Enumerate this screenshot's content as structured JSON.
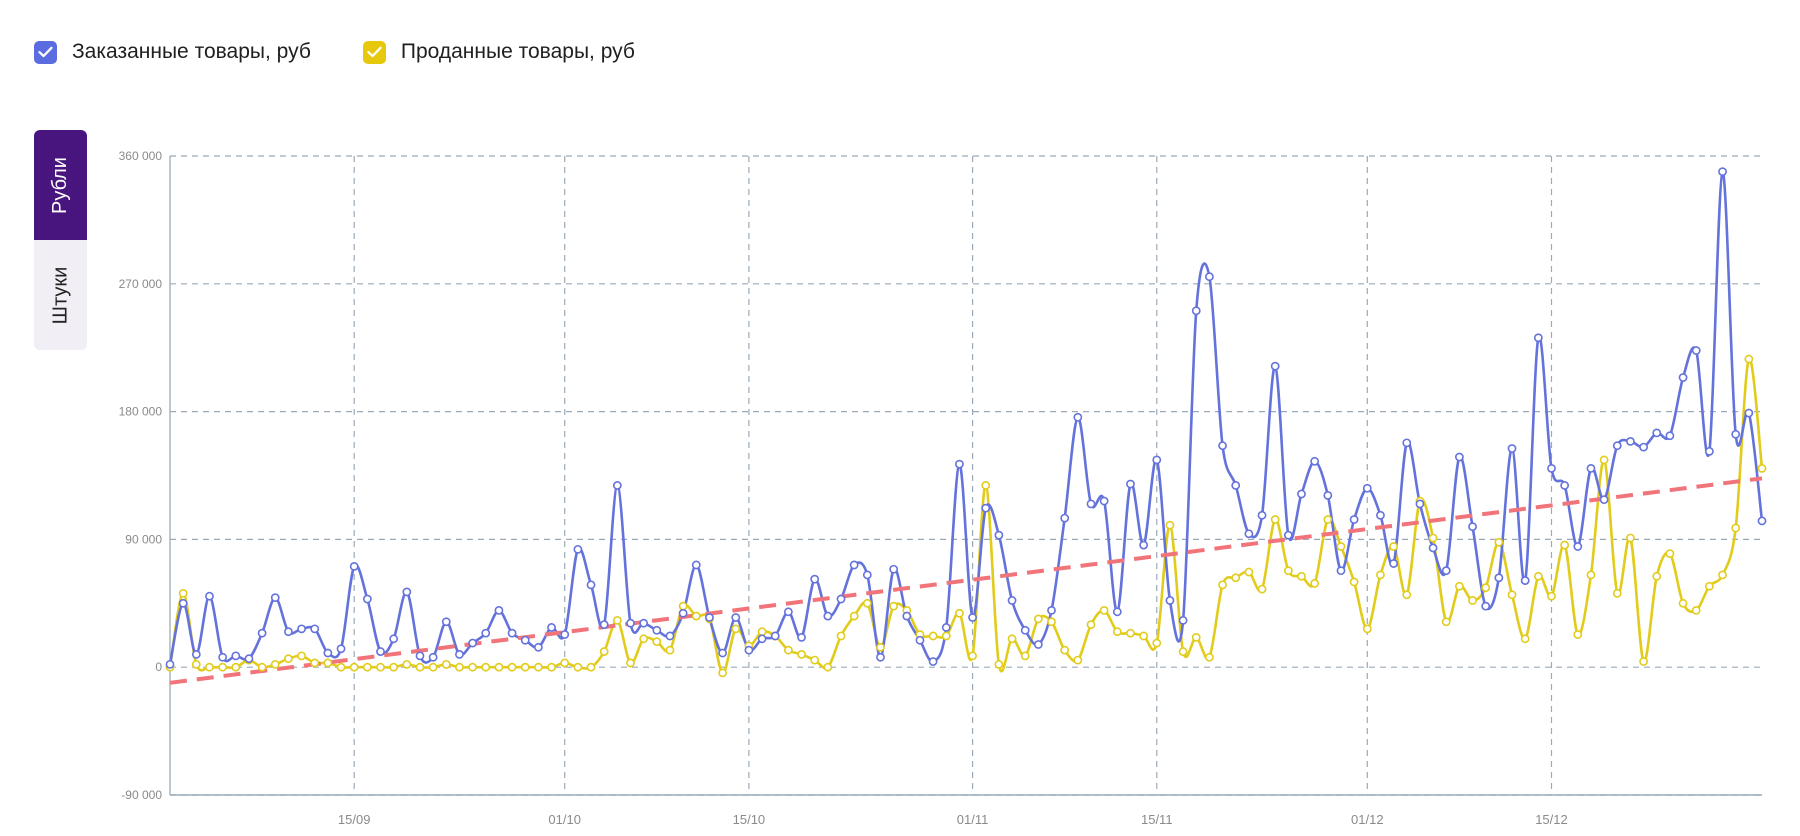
{
  "legend": {
    "items": [
      {
        "label": "Заказанные товары, руб",
        "color": "#6472dc",
        "checkbox_color": "#5b6ce0",
        "checked": true
      },
      {
        "label": "Проданные товары, руб",
        "color": "#e2cc1b",
        "checkbox_color": "#e6c80c",
        "checked": true
      }
    ]
  },
  "units_switch": {
    "items": [
      {
        "label": "Рубли",
        "active": true
      },
      {
        "label": "Штуки",
        "active": false
      }
    ]
  },
  "colors": {
    "accent": "#48157e",
    "grid": "#9aaab8",
    "axis": "#9aaab8",
    "trend": "#f07479"
  },
  "icons": {
    "checkbox": "check-icon"
  },
  "chart_data": {
    "type": "line",
    "title": "",
    "xlabel": "",
    "ylabel": "",
    "ylim": [
      -90000,
      360000
    ],
    "y_ticks": [
      -90000,
      0,
      90000,
      180000,
      270000,
      360000
    ],
    "y_tick_labels": [
      "-90 000",
      "0",
      "90 000",
      "180 000",
      "270 000",
      "360 000"
    ],
    "x_start": "2024-09-01",
    "x_end": "2024-12-31",
    "x_ticks": [
      "2024-09-15",
      "2024-10-01",
      "2024-10-15",
      "2024-11-01",
      "2024-11-15",
      "2024-12-01",
      "2024-12-15"
    ],
    "x_tick_labels": [
      "15/09",
      "01/10",
      "15/10",
      "01/11",
      "15/11",
      "01/12",
      "15/12"
    ],
    "grid": true,
    "legend_position": "top-left",
    "series": [
      {
        "name": "Заказанные товары, руб",
        "color": "#6472dc",
        "markers": true,
        "values": [
          2000,
          45000,
          9000,
          50000,
          7000,
          8000,
          6000,
          24000,
          49000,
          25000,
          27000,
          27000,
          10000,
          13000,
          71000,
          48000,
          11000,
          20000,
          53000,
          8000,
          7000,
          32000,
          9000,
          17000,
          24000,
          40000,
          24000,
          19000,
          14000,
          28000,
          23000,
          83000,
          58000,
          30000,
          128000,
          31000,
          31000,
          26000,
          22000,
          38000,
          72000,
          35000,
          10000,
          35000,
          12000,
          20000,
          22000,
          39000,
          21000,
          62000,
          36000,
          48000,
          72000,
          65000,
          7000,
          69000,
          36000,
          19000,
          4000,
          28000,
          143000,
          35000,
          112000,
          93000,
          47000,
          26000,
          16000,
          40000,
          105000,
          176000,
          115000,
          117000,
          39000,
          129000,
          86000,
          146000,
          47000,
          33000,
          251000,
          275000,
          156000,
          128000,
          94000,
          107000,
          212000,
          93000,
          122000,
          145000,
          121000,
          68000,
          104000,
          126000,
          107000,
          73000,
          158000,
          115000,
          84000,
          68000,
          148000,
          99000,
          43000,
          63000,
          154000,
          61000,
          232000,
          140000,
          128000,
          85000,
          140000,
          118000,
          156000,
          159000,
          155000,
          165000,
          163000,
          204000,
          223000,
          152000,
          349000,
          164000,
          179000,
          103000
        ]
      },
      {
        "name": "Проданные товары, руб",
        "color": "#e2cc1b",
        "markers": true,
        "values": [
          0,
          52000,
          2000,
          0,
          0,
          0,
          5000,
          0,
          2000,
          6000,
          8000,
          3000,
          3000,
          0,
          0,
          0,
          0,
          0,
          2000,
          0,
          0,
          2000,
          0,
          0,
          0,
          0,
          0,
          0,
          0,
          0,
          3000,
          0,
          0,
          11000,
          33000,
          3000,
          20000,
          18000,
          12000,
          43000,
          36000,
          34000,
          -4000,
          27000,
          15000,
          25000,
          22000,
          12000,
          9000,
          5000,
          0,
          22000,
          36000,
          45000,
          14000,
          43000,
          40000,
          23000,
          22000,
          22000,
          38000,
          8000,
          128000,
          2000,
          20000,
          8000,
          34000,
          32000,
          12000,
          5000,
          30000,
          40000,
          25000,
          24000,
          22000,
          17000,
          100000,
          11000,
          21000,
          7000,
          58000,
          63000,
          67000,
          55000,
          104000,
          68000,
          64000,
          59000,
          104000,
          85000,
          60000,
          27000,
          65000,
          85000,
          51000,
          117000,
          91000,
          32000,
          57000,
          47000,
          56000,
          88000,
          51000,
          20000,
          64000,
          50000,
          86000,
          23000,
          65000,
          146000,
          52000,
          91000,
          4000,
          64000,
          80000,
          45000,
          40000,
          57000,
          65000,
          98000,
          217000,
          140000
        ]
      },
      {
        "name": "",
        "type": "trend",
        "style": "dashed",
        "color": "#f07479",
        "markers": false,
        "endpoints": [
          -11000,
          133000
        ]
      }
    ]
  }
}
